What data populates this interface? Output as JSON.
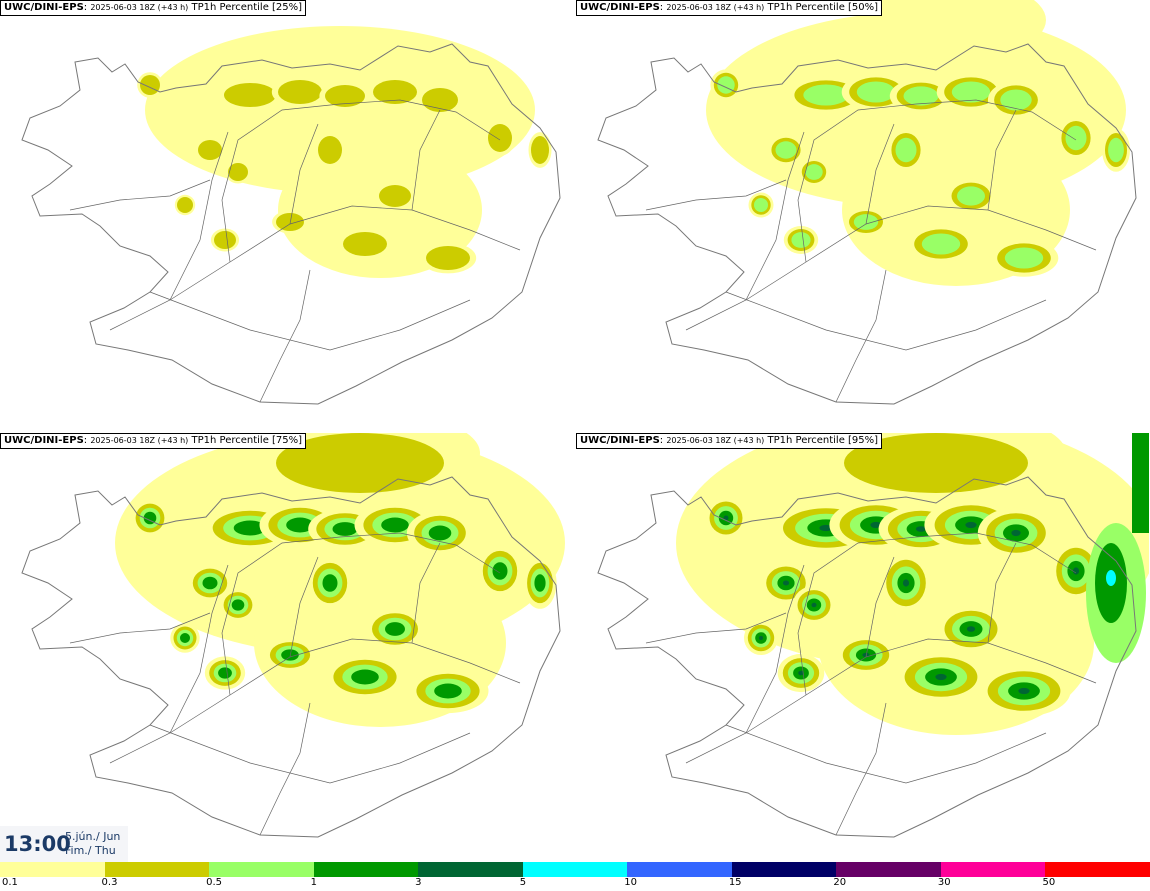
{
  "panels": [
    {
      "model": "UWC/DINI-EPS",
      "run": "2025-06-03 18Z (+43 h)",
      "label": "TP1h Percentile [25%]",
      "level": 1
    },
    {
      "model": "UWC/DINI-EPS",
      "run": "2025-06-03 18Z (+43 h)",
      "label": "TP1h Percentile [50%]",
      "level": 2
    },
    {
      "model": "UWC/DINI-EPS",
      "run": "2025-06-03 18Z (+43 h)",
      "label": "TP1h Percentile [75%]",
      "level": 3
    },
    {
      "model": "UWC/DINI-EPS",
      "run": "2025-06-03 18Z (+43 h)",
      "label": "TP1h Percentile [95%]",
      "level": 4
    }
  ],
  "valid_time": {
    "time": "13:00",
    "date_line1": "5.jún./ Jun",
    "date_line2": "Fim./ Thu"
  },
  "legend": {
    "colors": [
      "#ffff99",
      "#cccc00",
      "#99ff66",
      "#009900",
      "#006633",
      "#00ffff",
      "#3366ff",
      "#000066",
      "#660066",
      "#ff0099",
      "#ff0000"
    ],
    "ticks": [
      "0.1",
      "0.3",
      "0.5",
      "1",
      "3",
      "5",
      "10",
      "15",
      "20",
      "30",
      "50"
    ]
  }
}
